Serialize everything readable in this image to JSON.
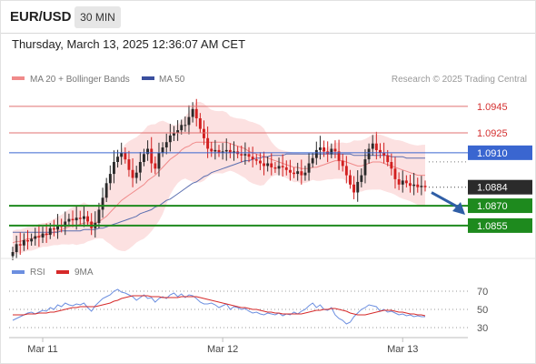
{
  "header": {
    "symbol": "EUR/USD",
    "timeframe": "30 MIN",
    "datetime": "Thursday, March 13, 2025 12:36:07 AM CET"
  },
  "legend": {
    "ma20_label": "MA 20 + Bollinger Bands",
    "ma50_label": "MA 50",
    "credit": "Research © 2025 Trading Central",
    "rsi_label": "RSI",
    "rsi_ma_label": "9MA"
  },
  "colors": {
    "up": "#2a2a2a",
    "down": "#d21f1f",
    "bollinger_fill": "#fcdcdc",
    "ma20": "#f08a8a",
    "ma50": "#5b6fb0",
    "resistance": "#e07070",
    "pivot": "#3a66d0",
    "support": "#1e8a1e",
    "forecast_arrow": "#2f5ea6",
    "rsi": "#6c8fe0",
    "rsi_ma": "#d62a2a"
  },
  "chart_data": [
    {
      "type": "candlestick",
      "title": "",
      "x_tick_labels": [
        "Mar 11",
        "Mar 12",
        "Mar 13"
      ],
      "ylim": [
        1.0835,
        1.0958
      ],
      "horizontal_levels": [
        {
          "value": 1.0945,
          "label": "1.0945",
          "kind": "resistance"
        },
        {
          "value": 1.0925,
          "label": "1.0925",
          "kind": "resistance"
        },
        {
          "value": 1.091,
          "label": "1.0910",
          "kind": "pivot"
        },
        {
          "value": 1.0884,
          "label": "1.0884",
          "kind": "last_price"
        },
        {
          "value": 1.087,
          "label": "1.0870",
          "kind": "support"
        },
        {
          "value": 1.0855,
          "label": "1.0855",
          "kind": "support"
        }
      ],
      "forecast": {
        "from": 1.0882,
        "to": 1.0868,
        "direction": "down"
      },
      "series": [
        {
          "name": "EUR/USD",
          "kind": "candles",
          "close": [
            1.0835,
            1.0841,
            1.084,
            1.0844,
            1.0843,
            1.0845,
            1.0847,
            1.0846,
            1.0849,
            1.0848,
            1.0853,
            1.0852,
            1.0855,
            1.0854,
            1.0858,
            1.086,
            1.0859,
            1.0861,
            1.086,
            1.0862,
            1.0858,
            1.0853,
            1.0857,
            1.0867,
            1.0876,
            1.0887,
            1.0894,
            1.0903,
            1.0907,
            1.091,
            1.0905,
            1.0897,
            1.0891,
            1.0895,
            1.0903,
            1.0909,
            1.0913,
            1.0902,
            1.0898,
            1.091,
            1.0914,
            1.0918,
            1.0923,
            1.0925,
            1.0927,
            1.0931,
            1.0931,
            1.0937,
            1.0943,
            1.0936,
            1.0928,
            1.0921,
            1.0913,
            1.0911,
            1.0912,
            1.091,
            1.0911,
            1.0912,
            1.091,
            1.0911,
            1.0909,
            1.0908,
            1.0909,
            1.0907,
            1.0905,
            1.0904,
            1.0902,
            1.09,
            1.0902,
            1.0899,
            1.0898,
            1.09,
            1.0899,
            1.0897,
            1.0895,
            1.0894,
            1.0896,
            1.0893,
            1.0895,
            1.0902,
            1.0906,
            1.0912,
            1.0914,
            1.0911,
            1.0909,
            1.0913,
            1.0911,
            1.0904,
            1.09,
            1.0893,
            1.0886,
            1.088,
            1.0888,
            1.0893,
            1.0905,
            1.0913,
            1.0917,
            1.0912,
            1.091,
            1.0908,
            1.0903,
            1.0898,
            1.089,
            1.0886,
            1.0889,
            1.0887,
            1.0885,
            1.0886,
            1.0884,
            1.0885,
            1.0884
          ]
        },
        {
          "name": "MA 20",
          "kind": "line",
          "values": [
            1.0842,
            1.0843,
            1.0843,
            1.0844,
            1.0845,
            1.0845,
            1.0846,
            1.0847,
            1.0848,
            1.0848,
            1.0849,
            1.085,
            1.0851,
            1.0852,
            1.0853,
            1.0854,
            1.0855,
            1.0855,
            1.0856,
            1.0857,
            1.0857,
            1.0857,
            1.0857,
            1.0858,
            1.086,
            1.0862,
            1.0865,
            1.0868,
            1.0871,
            1.0874,
            1.0876,
            1.0878,
            1.088,
            1.0882,
            1.0884,
            1.0886,
            1.0889,
            1.0891,
            1.0893,
            1.0896,
            1.0899,
            1.0902,
            1.0905,
            1.0907,
            1.0909,
            1.0912,
            1.0914,
            1.0915,
            1.0917,
            1.0918,
            1.0918,
            1.0918,
            1.0918,
            1.0918,
            1.0918,
            1.0918,
            1.0918,
            1.0918,
            1.0917,
            1.0916,
            1.0915,
            1.0914,
            1.0913,
            1.0911,
            1.091,
            1.0909,
            1.0908,
            1.0907,
            1.0906,
            1.0905,
            1.0904,
            1.0903,
            1.0902,
            1.0901,
            1.09,
            1.0899,
            1.0899,
            1.0898,
            1.0898,
            1.0898,
            1.0899,
            1.0899,
            1.09,
            1.0901,
            1.0902,
            1.0903,
            1.0904,
            1.0904,
            1.0904,
            1.0903,
            1.0902,
            1.0901,
            1.09,
            1.09,
            1.0901,
            1.0902,
            1.0903,
            1.0903,
            1.0903,
            1.0902,
            1.0901,
            1.09,
            1.0899,
            1.0898,
            1.0897,
            1.0896,
            1.0895,
            1.0894,
            1.0893,
            1.0893,
            1.0893
          ]
        },
        {
          "name": "MA 50",
          "kind": "line",
          "values": [
            1.085,
            1.085,
            1.085,
            1.085,
            1.085,
            1.085,
            1.085,
            1.085,
            1.085,
            1.085,
            1.085,
            1.085,
            1.085,
            1.0851,
            1.0851,
            1.0851,
            1.0851,
            1.0851,
            1.0851,
            1.0852,
            1.0852,
            1.0852,
            1.0852,
            1.0853,
            1.0853,
            1.0854,
            1.0855,
            1.0856,
            1.0857,
            1.0858,
            1.0859,
            1.086,
            1.0861,
            1.0862,
            1.0864,
            1.0865,
            1.0866,
            1.0867,
            1.0869,
            1.087,
            1.0872,
            1.0874,
            1.0875,
            1.0877,
            1.0879,
            1.0881,
            1.0883,
            1.0885,
            1.0887,
            1.0888,
            1.089,
            1.0892,
            1.0893,
            1.0895,
            1.0896,
            1.0897,
            1.0898,
            1.0899,
            1.09,
            1.0901,
            1.0902,
            1.0903,
            1.0904,
            1.0904,
            1.0905,
            1.0906,
            1.0906,
            1.0907,
            1.0907,
            1.0908,
            1.0908,
            1.0908,
            1.0908,
            1.0909,
            1.0909,
            1.0909,
            1.0909,
            1.0909,
            1.0909,
            1.0909,
            1.0909,
            1.0909,
            1.0909,
            1.0909,
            1.0909,
            1.0909,
            1.0909,
            1.0909,
            1.0909,
            1.0909,
            1.0909,
            1.0908,
            1.0908,
            1.0908,
            1.0908,
            1.0908,
            1.0908,
            1.0908,
            1.0908,
            1.0908,
            1.0908,
            1.0907,
            1.0907,
            1.0907,
            1.0907,
            1.0906,
            1.0906,
            1.0906,
            1.0906,
            1.0906,
            1.0906
          ]
        }
      ]
    },
    {
      "type": "line",
      "title": "",
      "y_tick_labels": [
        "70",
        "50",
        "30"
      ],
      "ylim": [
        24,
        78
      ],
      "series": [
        {
          "name": "RSI",
          "values": [
            38,
            40,
            42,
            44,
            46,
            47,
            45,
            47,
            49,
            48,
            52,
            50,
            55,
            53,
            57,
            55,
            54,
            56,
            55,
            57,
            52,
            48,
            54,
            58,
            62,
            64,
            66,
            70,
            72,
            69,
            68,
            66,
            64,
            60,
            63,
            66,
            62,
            63,
            58,
            62,
            64,
            62,
            66,
            68,
            64,
            67,
            63,
            66,
            65,
            62,
            58,
            56,
            56,
            57,
            55,
            52,
            54,
            56,
            50,
            53,
            52,
            50,
            51,
            48,
            46,
            47,
            45,
            44,
            46,
            45,
            44,
            46,
            43,
            45,
            44,
            47,
            45,
            48,
            50,
            54,
            57,
            52,
            55,
            50,
            49,
            52,
            44,
            40,
            38,
            34,
            36,
            42,
            46,
            50,
            52,
            55,
            54,
            53,
            48,
            50,
            47,
            48,
            46,
            44,
            45,
            43,
            44,
            42,
            43,
            42,
            42
          ]
        },
        {
          "name": "9MA",
          "values": [
            44,
            44,
            44,
            44,
            45,
            45,
            45,
            46,
            46,
            46,
            47,
            47,
            48,
            49,
            50,
            51,
            52,
            52,
            53,
            53,
            53,
            53,
            53,
            54,
            55,
            56,
            57,
            59,
            60,
            62,
            63,
            64,
            65,
            65,
            65,
            65,
            65,
            64,
            64,
            64,
            63,
            63,
            63,
            63,
            63,
            64,
            64,
            64,
            64,
            64,
            63,
            62,
            61,
            60,
            59,
            58,
            57,
            56,
            55,
            54,
            53,
            52,
            52,
            51,
            50,
            50,
            49,
            48,
            47,
            47,
            46,
            46,
            45,
            45,
            45,
            45,
            45,
            45,
            46,
            47,
            48,
            49,
            49,
            50,
            50,
            51,
            51,
            50,
            49,
            48,
            46,
            45,
            44,
            44,
            44,
            45,
            46,
            47,
            48,
            49,
            49,
            49,
            48,
            47,
            47,
            46,
            45,
            45,
            44,
            44,
            43
          ]
        }
      ]
    }
  ]
}
